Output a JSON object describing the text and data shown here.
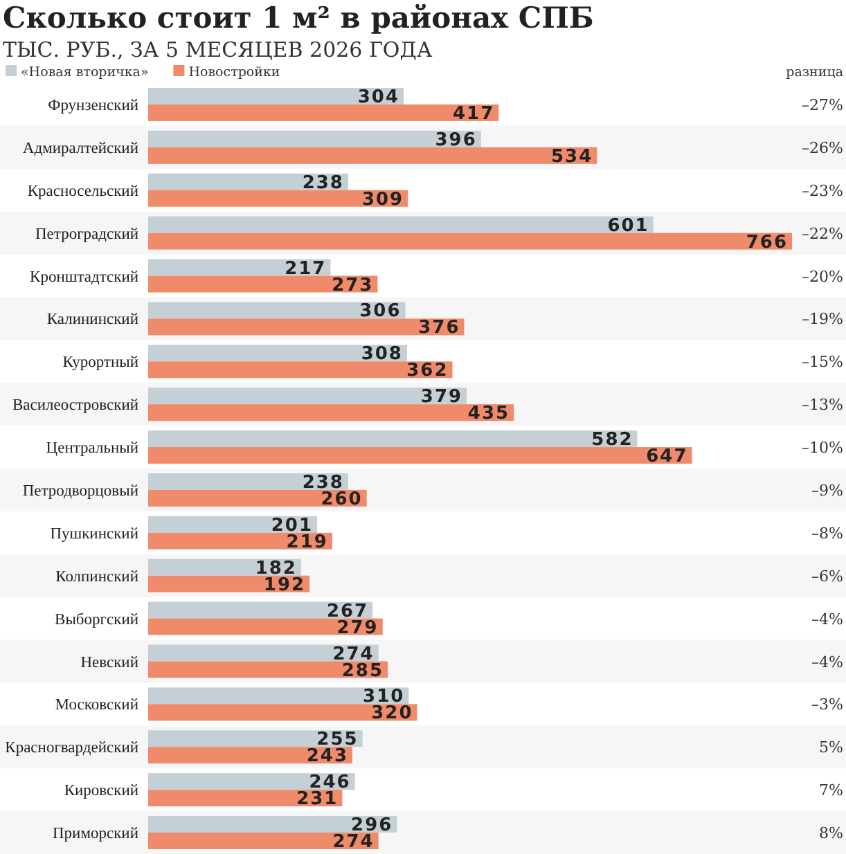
{
  "chart_data": {
    "type": "bar",
    "orientation": "horizontal",
    "title": "Сколько стоит 1 м² в районах СПБ",
    "subtitle": "ТЫС. РУБ., ЗА 5 МЕСЯЦЕВ 2026 ГОДА",
    "categories": [
      "Фрунзенский",
      "Адмиралтейский",
      "Красносельский",
      "Петроградский",
      "Кронштадтский",
      "Калининский",
      "Курортный",
      "Василеостровский",
      "Центральный",
      "Петродворцовый",
      "Пушкинский",
      "Колпинский",
      "Выборгский",
      "Невский",
      "Московский",
      "Красногвардейский",
      "Кировский",
      "Приморский"
    ],
    "series": [
      {
        "name": "«Новая вторичка»",
        "color": "#c5cfd6",
        "values": [
          304,
          396,
          238,
          601,
          217,
          306,
          308,
          379,
          582,
          238,
          201,
          182,
          267,
          274,
          310,
          255,
          246,
          296
        ]
      },
      {
        "name": "Новостройки",
        "color": "#ef8b6b",
        "values": [
          417,
          534,
          309,
          766,
          273,
          376,
          362,
          435,
          647,
          260,
          219,
          192,
          279,
          285,
          320,
          243,
          231,
          274
        ]
      }
    ],
    "data_labels": true,
    "legend": "top left",
    "annotations": [
      "разница",
      "–27%",
      "–26%",
      "–23%",
      "–22%",
      "–20%",
      "–19%",
      "–15%",
      "–13%",
      "–10%",
      "–9%",
      "–8%",
      "–6%",
      "–4%",
      "–4%",
      "–3%",
      "5%",
      "7%",
      "8%"
    ]
  }
}
